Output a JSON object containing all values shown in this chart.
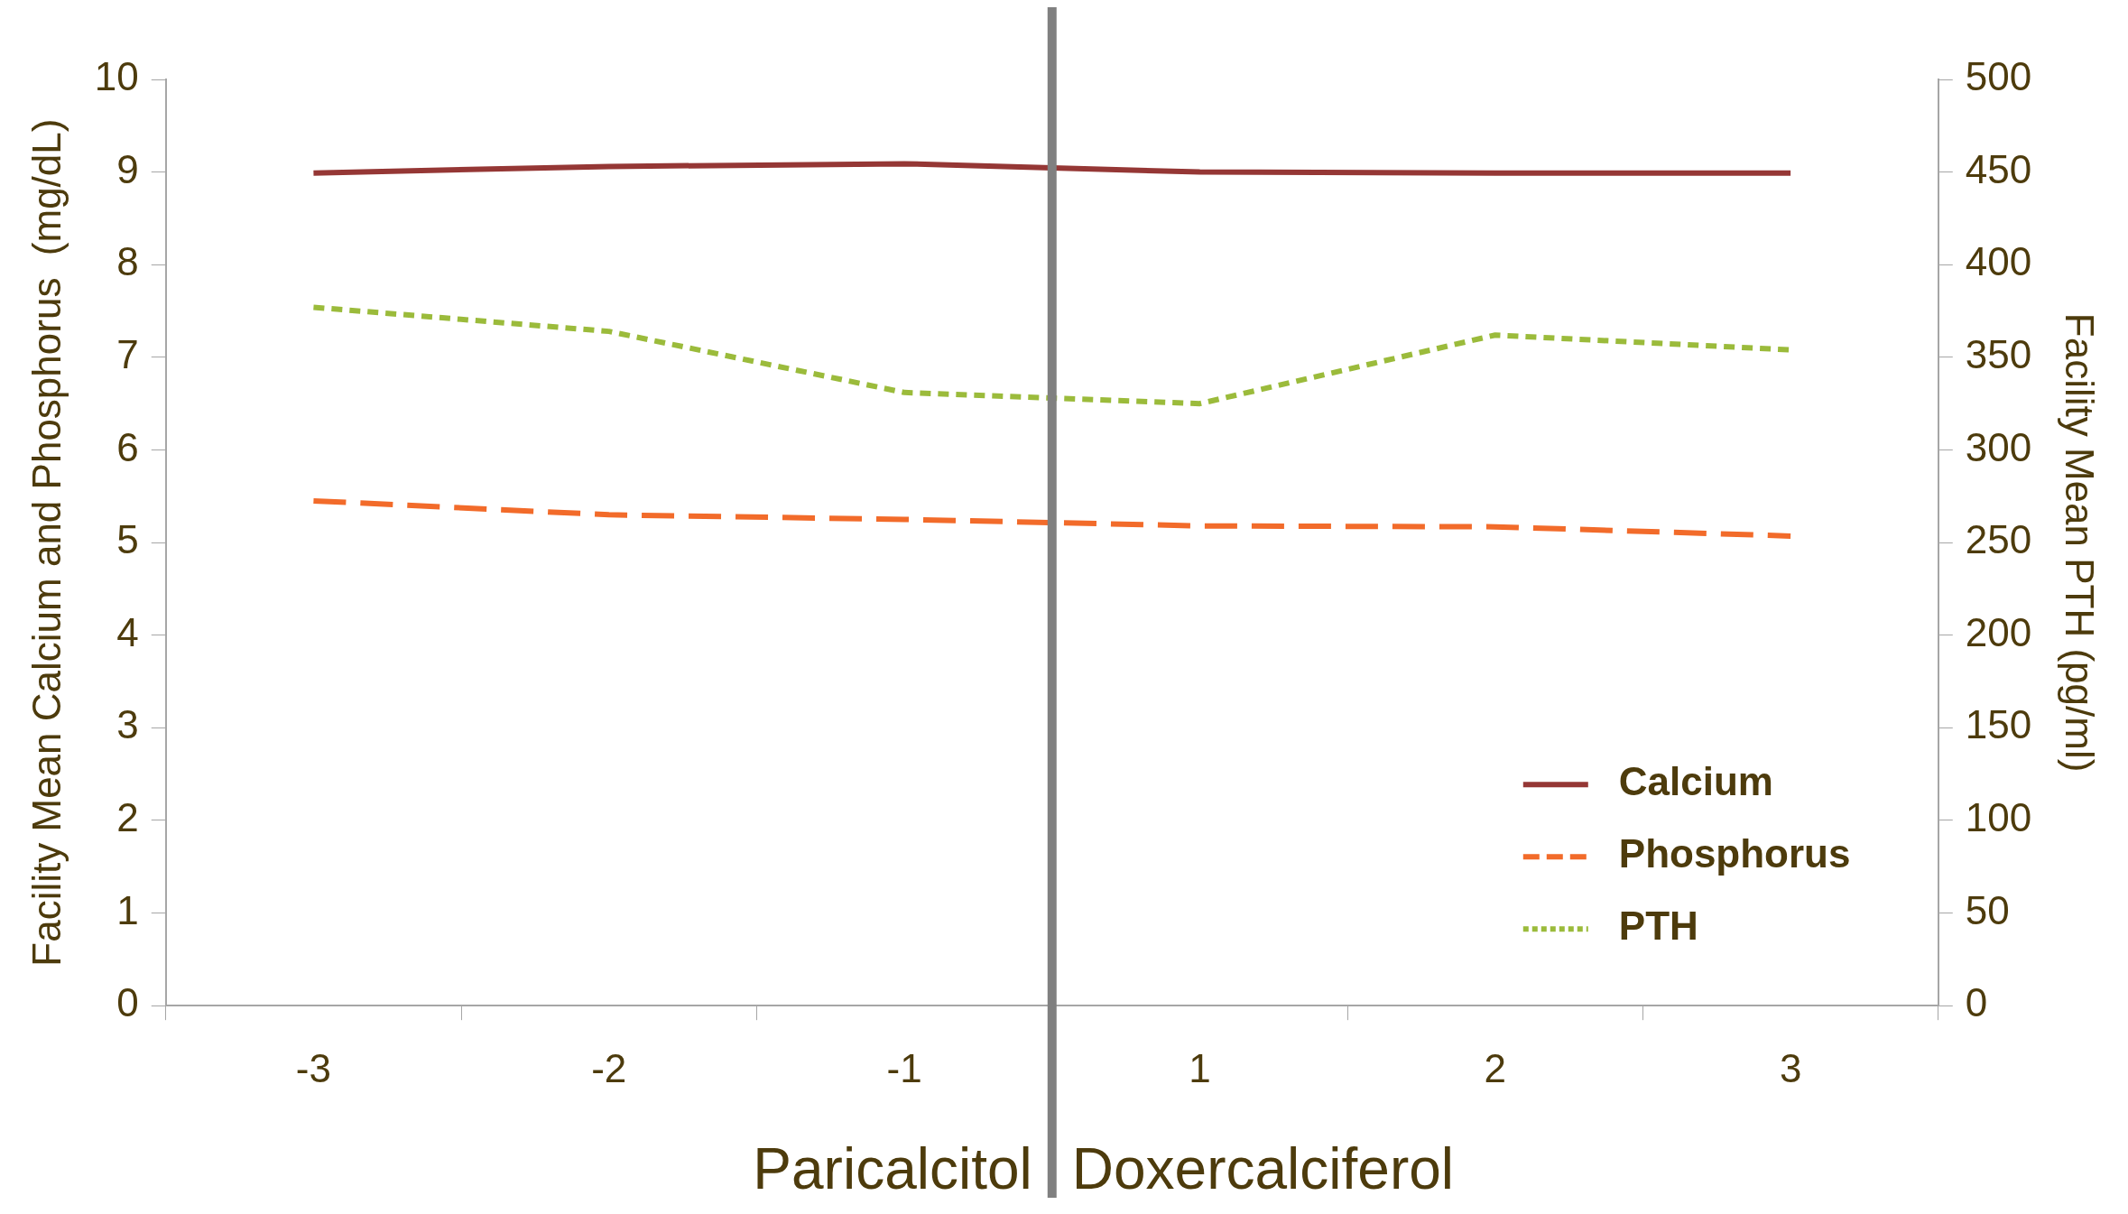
{
  "chart_data": {
    "type": "line",
    "ylabel": "Facility Mean Calcium and Phosphorus  (mg/dL)",
    "y2label": "Facility Mean PTH (pg/ml)",
    "categories": [
      "-3",
      "-2",
      "-1",
      "1",
      "2",
      "3"
    ],
    "series": [
      {
        "name": "Calcium",
        "color": "#953735",
        "line_style": "solid",
        "values": [
          8.99,
          9.06,
          9.09,
          9.0,
          8.99,
          8.99
        ]
      },
      {
        "name": "Phosphorus",
        "color": "#f26b2a",
        "line_style": "dashed",
        "values": [
          5.45,
          5.3,
          5.25,
          5.18,
          5.17,
          5.07
        ]
      },
      {
        "name": "PTH",
        "color": "#9bbb3b",
        "line_style": "dotted",
        "axis": "y2",
        "values": [
          377,
          364,
          331,
          325,
          362,
          354
        ]
      }
    ],
    "ylim": [
      0,
      10
    ],
    "yticks": [
      0,
      1,
      2,
      3,
      4,
      5,
      6,
      7,
      8,
      9,
      10
    ],
    "y2lim": [
      0,
      500
    ],
    "y2ticks": [
      0,
      50,
      100,
      150,
      200,
      250,
      300,
      350,
      400,
      450,
      500
    ],
    "annotations": [
      "Paricalcitol",
      "Doxercalciferol"
    ],
    "grid": false,
    "legend": "bottom right",
    "marker": "none"
  }
}
